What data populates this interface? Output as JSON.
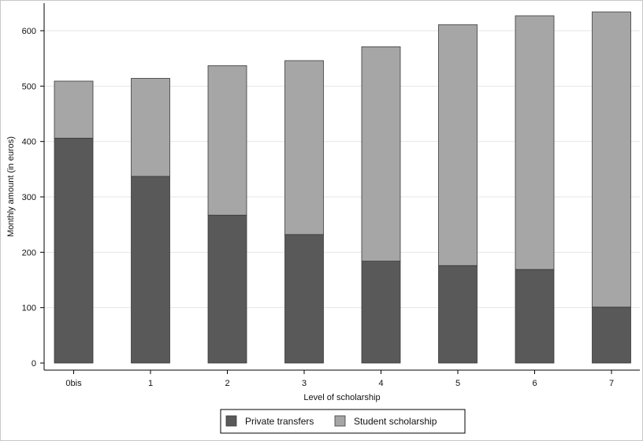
{
  "chart_data": {
    "type": "bar",
    "stacked": true,
    "title": "",
    "xlabel": "Level of scholarship",
    "ylabel": "Monthly amount (in euros)",
    "categories": [
      "0bis",
      "1",
      "2",
      "3",
      "4",
      "5",
      "6",
      "7"
    ],
    "series": [
      {
        "name": "Private transfers",
        "color": "#595959",
        "values": [
          406,
          337,
          267,
          232,
          184,
          176,
          169,
          101
        ]
      },
      {
        "name": "Student scholarship",
        "color": "#a6a6a6",
        "values": [
          103,
          177,
          270,
          314,
          387,
          435,
          458,
          533
        ]
      }
    ],
    "ylim": [
      0,
      650
    ],
    "yticks": [
      0,
      100,
      200,
      300,
      400,
      500,
      600
    ],
    "grid": true,
    "legend_position": "bottom"
  }
}
